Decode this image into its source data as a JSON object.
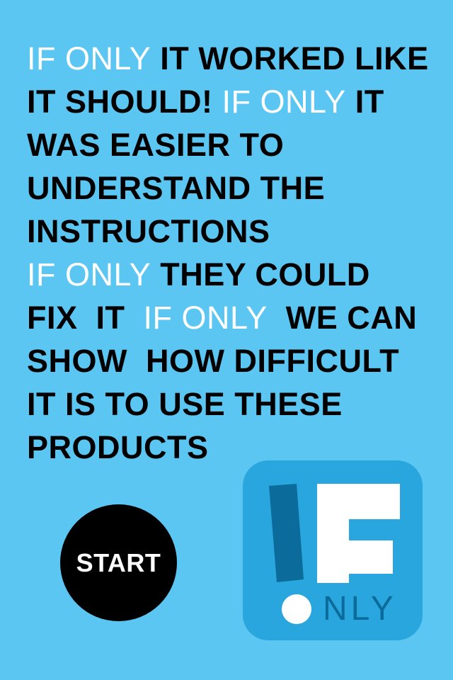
{
  "statement": {
    "lines": [
      {
        "hl": "IF ONLY",
        "rest": " IT WORKED LIKE"
      },
      {
        "pre": "IT SHOULD! ",
        "hl": "IF ONLY",
        "rest": " IT"
      },
      {
        "text": "WAS EASIER TO"
      },
      {
        "text": "UNDERSTAND THE"
      },
      {
        "text": "INSTRUCTIONS"
      },
      {
        "hl": "IF ONLY",
        "rest": " THEY COULD"
      },
      {
        "pre": "FIX  IT  ",
        "hl": "IF ONLY",
        "rest": "  WE CAN"
      },
      {
        "text": "SHOW  HOW DIFFICULT"
      },
      {
        "text": "IT IS TO USE THESE"
      },
      {
        "text": "PRODUCTS"
      }
    ]
  },
  "start_button": {
    "label": "START"
  },
  "logo": {
    "letters": "IF",
    "suffix": "NLY"
  },
  "colors": {
    "background": "#5bc6f2",
    "highlight_text": "#ffffff",
    "body_text": "#000000",
    "logo_bg": "#2aa6de",
    "logo_dark": "#0b6b9a"
  },
  "icons": {
    "start": "circle-button",
    "logo": "if-only-app-logo"
  }
}
